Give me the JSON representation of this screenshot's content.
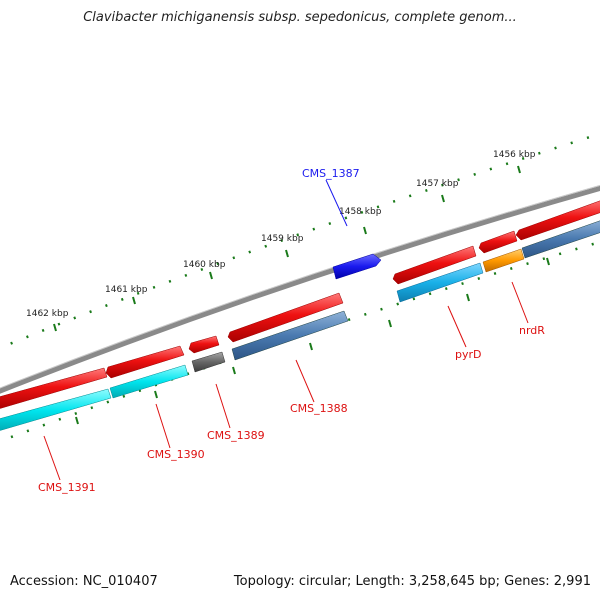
{
  "title": "Clavibacter michiganensis subsp. sepedonicus, complete genom...",
  "footer": {
    "accession": "Accession: NC_010407",
    "summary": "Topology: circular; Length: 3,258,645 bp; Genes: 2,991"
  },
  "ruler_labels": [
    "1456 kbp",
    "1457 kbp",
    "1458 kbp",
    "1459 kbp",
    "1460 kbp",
    "1461 kbp",
    "1462 kbp"
  ],
  "genes": [
    {
      "label": "CMS_1387",
      "color": "#1010ee"
    },
    {
      "label": "CMS_1388",
      "color": "#dd1111"
    },
    {
      "label": "CMS_1389",
      "color": "#dd1111"
    },
    {
      "label": "CMS_1390",
      "color": "#dd1111"
    },
    {
      "label": "CMS_1391",
      "color": "#dd1111"
    },
    {
      "label": "pyrD",
      "color": "#dd1111"
    },
    {
      "label": "nrdR",
      "color": "#dd1111"
    }
  ],
  "colors": {
    "backbone": "#8a8a8a",
    "cds_forward": "#ee1111",
    "cds_reverse_blue": "#1a1aee",
    "feature_cyan": "#00e5ee",
    "feature_skyblue": "#19b0e8",
    "feature_steel": "#4a7ab0",
    "feature_orange": "#ff9900",
    "feature_gray": "#666666",
    "ruler_tick": "#1a7a1a"
  }
}
